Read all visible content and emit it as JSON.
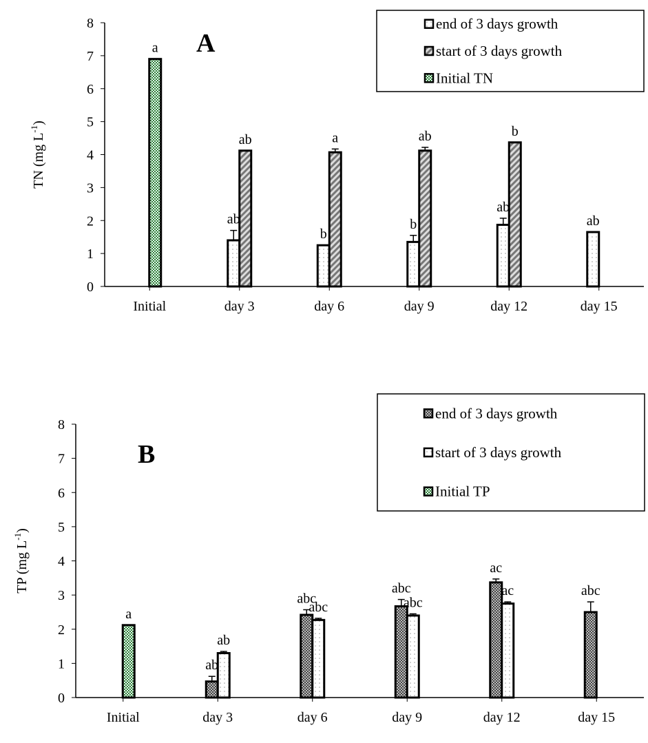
{
  "chart_data": [
    {
      "type": "bar",
      "panel": "A",
      "ylabel": "TN (mg L-1)",
      "ylabel_main": "TN (mg L",
      "ylabel_sup": "-1",
      "ylabel_close": ")",
      "ylim": [
        0,
        8
      ],
      "yticks": [
        0,
        1,
        2,
        3,
        4,
        5,
        6,
        7,
        8
      ],
      "categories": [
        "Initial",
        "day 3",
        "day 6",
        "day 9",
        "day 12",
        "day 15"
      ],
      "legend": [
        "end of 3 days growth",
        "start of 3 days growth",
        "Initial TN"
      ],
      "legend_placement": "top-right",
      "series": [
        {
          "name": "Initial TN",
          "values": [
            6.9,
            null,
            null,
            null,
            null,
            null
          ],
          "errors": [
            0,
            0,
            0,
            0,
            0,
            0
          ],
          "labels": [
            "a",
            "",
            "",
            "",
            "",
            ""
          ]
        },
        {
          "name": "end of 3 days growth",
          "values": [
            null,
            1.4,
            1.25,
            1.35,
            1.87,
            1.65
          ],
          "errors": [
            0,
            0.3,
            0,
            0.2,
            0.2,
            0
          ],
          "labels": [
            "",
            "ab",
            "b",
            "b",
            "ab",
            "ab"
          ]
        },
        {
          "name": "start of 3 days growth",
          "values": [
            null,
            4.12,
            4.07,
            4.12,
            4.37,
            null
          ],
          "errors": [
            0,
            0,
            0.1,
            0.1,
            0,
            0
          ],
          "labels": [
            "",
            "ab",
            "a",
            "ab",
            "b",
            ""
          ]
        }
      ]
    },
    {
      "type": "bar",
      "panel": "B",
      "ylabel": "TP (mg L-1)",
      "ylabel_main": "TP (mg L",
      "ylabel_sup": "-1",
      "ylabel_close": ")",
      "ylim": [
        0,
        8
      ],
      "yticks": [
        0,
        1,
        2,
        3,
        4,
        5,
        6,
        7,
        8
      ],
      "categories": [
        "Initial",
        "day 3",
        "day 6",
        "day 9",
        "day 12",
        "day 15"
      ],
      "legend": [
        "end of 3 days growth",
        "start of 3 days growth",
        "Initial TP"
      ],
      "legend_placement": "top-right",
      "series": [
        {
          "name": "Initial TP",
          "values": [
            2.12,
            null,
            null,
            null,
            null,
            null
          ],
          "errors": [
            0,
            0,
            0,
            0,
            0,
            0
          ],
          "labels": [
            "a",
            "",
            "",
            "",
            "",
            ""
          ]
        },
        {
          "name": "end of 3 days growth",
          "values": [
            null,
            0.47,
            2.42,
            2.67,
            3.37,
            2.5
          ],
          "errors": [
            0,
            0.15,
            0.15,
            0.2,
            0.1,
            0.3
          ],
          "labels": [
            "",
            "ab",
            "abc",
            "abc",
            "ac",
            "abc"
          ]
        },
        {
          "name": "start of 3 days growth",
          "values": [
            null,
            1.3,
            2.27,
            2.4,
            2.75,
            null
          ],
          "errors": [
            0,
            0.05,
            0.05,
            0.05,
            0.05,
            0
          ],
          "labels": [
            "",
            "ab",
            "abc",
            "abc",
            "ac",
            ""
          ]
        }
      ]
    }
  ],
  "colors": {
    "initial": "#4a8a4a",
    "hatch": "#888888",
    "dots": "#999999"
  }
}
